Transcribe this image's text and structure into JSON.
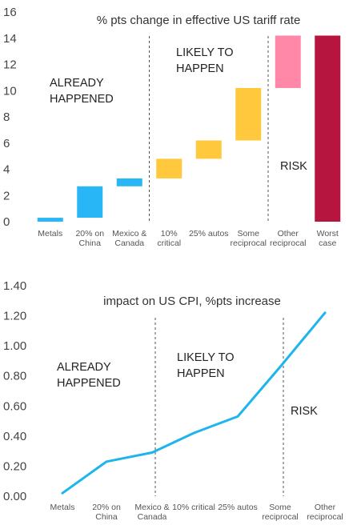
{
  "chart_data": [
    {
      "type": "bar",
      "subtype": "waterfall",
      "title": "% pts change in effective US tariff rate",
      "ylim": [
        0,
        16
      ],
      "yticks": [
        "0",
        "2",
        "4",
        "6",
        "8",
        "10",
        "12",
        "14",
        "16"
      ],
      "categories": [
        [
          "Metals"
        ],
        [
          "20% on",
          "China"
        ],
        [
          "Mexico &",
          "Canada"
        ],
        [
          "10%",
          "critical"
        ],
        [
          "25% autos"
        ],
        [
          "Some",
          "reciprocal"
        ],
        [
          "Other",
          "reciprocal"
        ],
        [
          "Worst",
          "case"
        ]
      ],
      "bars": [
        {
          "start": 0.0,
          "end": 0.3,
          "color": "#29b6f6"
        },
        {
          "start": 0.3,
          "end": 2.7,
          "color": "#29b6f6"
        },
        {
          "start": 2.7,
          "end": 3.3,
          "color": "#29b6f6"
        },
        {
          "start": 3.3,
          "end": 4.8,
          "color": "#ffc83d"
        },
        {
          "start": 4.8,
          "end": 6.2,
          "color": "#ffc83d"
        },
        {
          "start": 6.2,
          "end": 10.2,
          "color": "#ffc83d"
        },
        {
          "start": 10.2,
          "end": 14.2,
          "color": "#ff88a8"
        },
        {
          "start": 0.0,
          "end": 14.2,
          "color": "#b5153e"
        }
      ],
      "regions": [
        {
          "lines": [
            "ALREADY",
            "HAPPENED"
          ]
        },
        {
          "lines": [
            "LIKELY TO",
            "HAPPEN"
          ]
        },
        {
          "lines": [
            "RISK"
          ]
        }
      ],
      "dividers_after_category": [
        2,
        5
      ],
      "grid": false
    },
    {
      "type": "line",
      "title": "impact on US CPI, %pts increase",
      "ylim": [
        0,
        1.4
      ],
      "yticks": [
        "0.00",
        "0.20",
        "0.40",
        "0.60",
        "0.80",
        "1.00",
        "1.20",
        "1.40"
      ],
      "categories": [
        [
          "Metals"
        ],
        [
          "20% on",
          "China"
        ],
        [
          "Mexico &",
          "Canada"
        ],
        [
          "10% critical"
        ],
        [
          "25% autos"
        ],
        [
          "Some",
          "reciprocal"
        ],
        [
          "Other",
          "reciprocal"
        ]
      ],
      "values": [
        0.02,
        0.23,
        0.29,
        0.42,
        0.53,
        0.86,
        1.22
      ],
      "color": "#1eb4ee",
      "regions": [
        {
          "lines": [
            "ALREADY",
            "HAPPENED"
          ]
        },
        {
          "lines": [
            "LIKELY TO",
            "HAPPEN"
          ]
        },
        {
          "lines": [
            "RISK"
          ]
        }
      ],
      "dividers_at_category": [
        2,
        5
      ],
      "grid": false
    }
  ]
}
